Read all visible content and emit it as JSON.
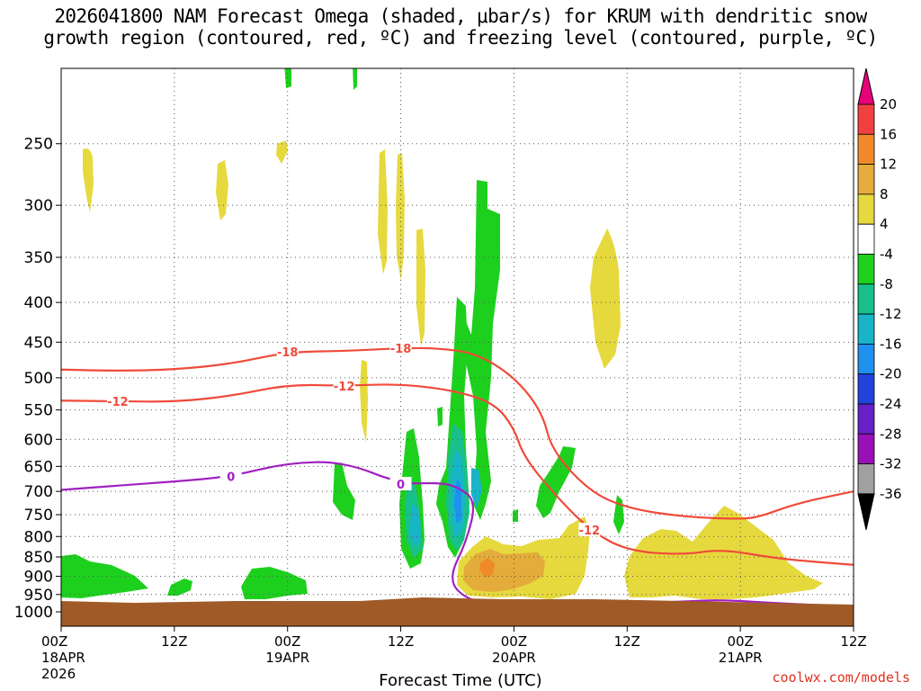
{
  "title_line1": "2026041800 NAM Forecast Omega (shaded, μbar/s) for KRUM with dendritic snow",
  "title_line2": "growth region (contoured, red, ºC) and freezing level (contoured, purple, ºC)",
  "credit": "coolwx.com/models",
  "chart_data": {
    "type": "time-height cross section",
    "title": "2026041800 NAM Forecast Omega (shaded, μbar/s) for KRUM with dendritic snow growth region (contoured, red, ºC) and freezing level (contoured, purple, ºC)",
    "xlabel": "Forecast Time (UTC)",
    "ylabel": "",
    "x_ticks": [
      {
        "hour": 0,
        "lines": [
          "00Z",
          "18APR",
          "2026"
        ]
      },
      {
        "hour": 12,
        "lines": [
          "12Z"
        ]
      },
      {
        "hour": 24,
        "lines": [
          "00Z",
          "19APR"
        ]
      },
      {
        "hour": 36,
        "lines": [
          "12Z"
        ]
      },
      {
        "hour": 48,
        "lines": [
          "00Z",
          "20APR"
        ]
      },
      {
        "hour": 60,
        "lines": [
          "12Z"
        ]
      },
      {
        "hour": 72,
        "lines": [
          "00Z",
          "21APR"
        ]
      },
      {
        "hour": 84,
        "lines": [
          "12Z"
        ]
      }
    ],
    "xlim": [
      0,
      84
    ],
    "y_ticks": [
      250,
      300,
      350,
      400,
      450,
      500,
      550,
      600,
      650,
      700,
      750,
      800,
      850,
      900,
      950,
      1000
    ],
    "ylim": [
      1000,
      200
    ],
    "y_scale": "log pressure",
    "grid": true,
    "colorbar": {
      "labels": [
        "20",
        "16",
        "12",
        "8",
        "4",
        "-4",
        "-8",
        "-12",
        "-16",
        "-20",
        "-24",
        "-28",
        "-32",
        "-36"
      ],
      "colors": [
        "#e8007a",
        "#f24040",
        "#f08a28",
        "#e4ac3a",
        "#e6d93e",
        "#ffffff",
        "#1ed01e",
        "#18c08c",
        "#18b4c8",
        "#1e90ee",
        "#2244dd",
        "#6620c8",
        "#9a10b8",
        "#a0a0a0",
        "#000000"
      ]
    },
    "contours": [
      {
        "kind": "dendritic",
        "label": "-18",
        "color": "#f04a3a",
        "points": [
          [
            0,
            488
          ],
          [
            6,
            490
          ],
          [
            12,
            488
          ],
          [
            18,
            480
          ],
          [
            24,
            463
          ],
          [
            30,
            462
          ],
          [
            36,
            458
          ],
          [
            40,
            458
          ],
          [
            44,
            465
          ],
          [
            48,
            498
          ],
          [
            51,
            553
          ],
          [
            52,
            620
          ],
          [
            56,
            700
          ],
          [
            60,
            736
          ],
          [
            66,
            755
          ],
          [
            72,
            760
          ],
          [
            74,
            755
          ],
          [
            78,
            725
          ],
          [
            84,
            700
          ]
        ]
      },
      {
        "kind": "dendritic",
        "label": "-12",
        "color": "#f04a3a",
        "points": [
          [
            0,
            535
          ],
          [
            6,
            536
          ],
          [
            12,
            537
          ],
          [
            18,
            528
          ],
          [
            24,
            510
          ],
          [
            30,
            512
          ],
          [
            36,
            509
          ],
          [
            42,
            520
          ],
          [
            46,
            540
          ],
          [
            48,
            580
          ],
          [
            49,
            630
          ],
          [
            52,
            700
          ],
          [
            56,
            785
          ],
          [
            60,
            835
          ],
          [
            66,
            845
          ],
          [
            70,
            830
          ],
          [
            76,
            855
          ],
          [
            84,
            870
          ]
        ]
      },
      {
        "kind": "freezing",
        "label": "0",
        "color": "#a020c0",
        "points": [
          [
            0,
            697
          ],
          [
            6,
            688
          ],
          [
            12,
            680
          ],
          [
            18,
            670
          ],
          [
            24,
            643
          ],
          [
            30,
            641
          ],
          [
            36,
            685
          ],
          [
            40,
            682
          ],
          [
            42,
            690
          ],
          [
            44,
            720
          ],
          [
            43,
            810
          ],
          [
            41,
            910
          ],
          [
            43,
            965
          ],
          [
            46,
            975
          ],
          [
            48,
            970
          ],
          [
            52,
            975
          ],
          [
            56,
            985
          ],
          [
            61,
            975
          ],
          [
            66,
            970
          ],
          [
            70,
            965
          ],
          [
            76,
            975
          ],
          [
            84,
            985
          ]
        ]
      }
    ],
    "shaded_regions": [
      {
        "value": "4 to 8",
        "center_hour": 2.5,
        "pressure_range": [
          270,
          320
        ]
      },
      {
        "value": "4 to 8",
        "center_hour": 16,
        "pressure_range": [
          270,
          330
        ]
      },
      {
        "value": "4 to 8",
        "center_hour": 35,
        "pressure_range": [
          270,
          400
        ]
      },
      {
        "value": "4 to 8",
        "center_hour": 32,
        "pressure_range": [
          500,
          600
        ]
      },
      {
        "value": "4 to 8",
        "center_hour": 59,
        "pressure_range": [
          345,
          500
        ]
      },
      {
        "value": "4 to 12",
        "center_hour": 50,
        "pressure_range": [
          820,
          960
        ]
      },
      {
        "value": "12 to 16",
        "center_hour": 46,
        "pressure_range": [
          880,
          920
        ]
      },
      {
        "value": "4 to 8",
        "center_hour": 70,
        "pressure_range": [
          760,
          960
        ]
      },
      {
        "value": "-4 to -8",
        "center_hour": 45,
        "pressure_range": [
          290,
          650
        ]
      },
      {
        "value": "-8 to -20",
        "center_hour": 43.5,
        "pressure_range": [
          620,
          860
        ]
      },
      {
        "value": "-4 to -8",
        "center_hour": 53,
        "pressure_range": [
          630,
          760
        ]
      },
      {
        "value": "-4 to -8",
        "center_hour": 5,
        "pressure_range": [
          890,
          970
        ]
      }
    ],
    "terrain_color": "#a05a28"
  }
}
